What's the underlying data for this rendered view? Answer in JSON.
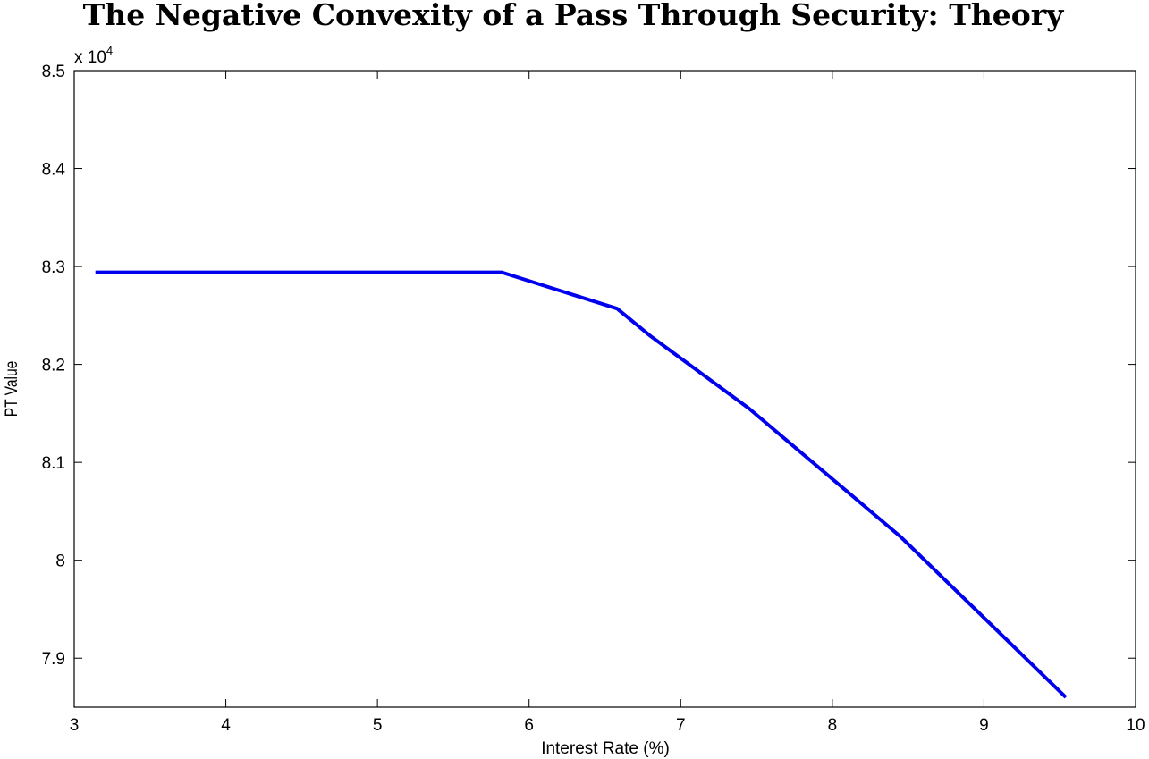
{
  "chart_data": {
    "type": "line",
    "title": "The Negative Convexity of a Pass Through Security: Theory",
    "xlabel": "Interest Rate (%)",
    "ylabel": "PT Value",
    "y_multiplier_label": "x 10",
    "y_multiplier_exponent": "4",
    "xlim": [
      3,
      10
    ],
    "ylim": [
      7.85,
      8.5
    ],
    "x_ticks": [
      3,
      4,
      5,
      6,
      7,
      8,
      9,
      10
    ],
    "y_ticks": [
      7.9,
      8,
      8.1,
      8.2,
      8.3,
      8.4,
      8.5
    ],
    "x_tick_labels": [
      "3",
      "4",
      "5",
      "6",
      "7",
      "8",
      "9",
      "10"
    ],
    "y_tick_labels": [
      "7.9",
      "8",
      "8.1",
      "8.2",
      "8.3",
      "8.4",
      "8.5"
    ],
    "grid": false,
    "legend": false,
    "series": [
      {
        "color": "#0000ee",
        "x": [
          3.14,
          5.82,
          6.58,
          6.8,
          7.45,
          8.45,
          9.54
        ],
        "y": [
          8.294,
          8.294,
          8.257,
          8.229,
          8.155,
          8.024,
          7.86
        ]
      }
    ]
  }
}
